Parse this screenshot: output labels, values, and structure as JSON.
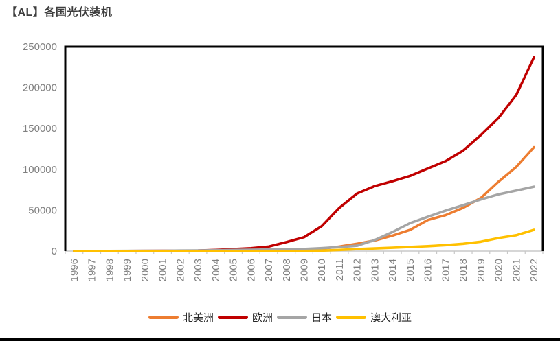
{
  "page": {
    "title": "【AL】各国光伏装机"
  },
  "colors": {
    "title_text": "#3d3d3d",
    "axis_text": "#808080",
    "axis_line": "#c8c8c8",
    "plot_border": "#000000",
    "bottom_rule": "#000000"
  },
  "chart_data": {
    "type": "line",
    "title": "【AL】各国光伏装机",
    "xlabel": "",
    "ylabel": "",
    "ylim": [
      0,
      250000
    ],
    "yticks": [
      0,
      50000,
      100000,
      150000,
      200000,
      250000
    ],
    "grid": false,
    "legend_position": "bottom",
    "x": [
      "1996",
      "1997",
      "1998",
      "1999",
      "2000",
      "2001",
      "2002",
      "2003",
      "2004",
      "2005",
      "2006",
      "2007",
      "2008",
      "2009",
      "2010",
      "2011",
      "2012",
      "2013",
      "2014",
      "2015",
      "2016",
      "2017",
      "2018",
      "2019",
      "2020",
      "2021",
      "2022"
    ],
    "series": [
      {
        "id": "north-america",
        "name": "北美洲",
        "color": "#ED7D31",
        "values": [
          80,
          90,
          110,
          130,
          160,
          200,
          250,
          320,
          400,
          520,
          650,
          900,
          1400,
          2000,
          2900,
          5500,
          9000,
          13000,
          19000,
          26000,
          38000,
          44000,
          53000,
          65000,
          85000,
          103000,
          127000
        ]
      },
      {
        "id": "europe",
        "name": "欧洲",
        "color": "#C00000",
        "values": [
          110,
          130,
          160,
          200,
          260,
          340,
          450,
          700,
          1400,
          2400,
          3500,
          5500,
          11000,
          17000,
          30500,
          53000,
          70500,
          79500,
          85500,
          92000,
          101000,
          110000,
          123000,
          142000,
          163000,
          191000,
          237000
        ]
      },
      {
        "id": "japan",
        "name": "日本",
        "color": "#A5A5A5",
        "values": [
          60,
          90,
          130,
          210,
          330,
          450,
          640,
          860,
          1130,
          1420,
          1710,
          1920,
          2140,
          2630,
          3620,
          4910,
          6630,
          13600,
          23300,
          34200,
          42000,
          49500,
          56200,
          63200,
          69500,
          74000,
          78800
        ]
      },
      {
        "id": "australia",
        "name": "澳大利亚",
        "color": "#FFC000",
        "values": [
          16,
          19,
          23,
          26,
          29,
          34,
          39,
          46,
          52,
          61,
          70,
          82,
          105,
          190,
          570,
          1400,
          2400,
          3300,
          4100,
          5100,
          6000,
          7300,
          9000,
          11500,
          16000,
          19500,
          26000
        ]
      }
    ]
  }
}
